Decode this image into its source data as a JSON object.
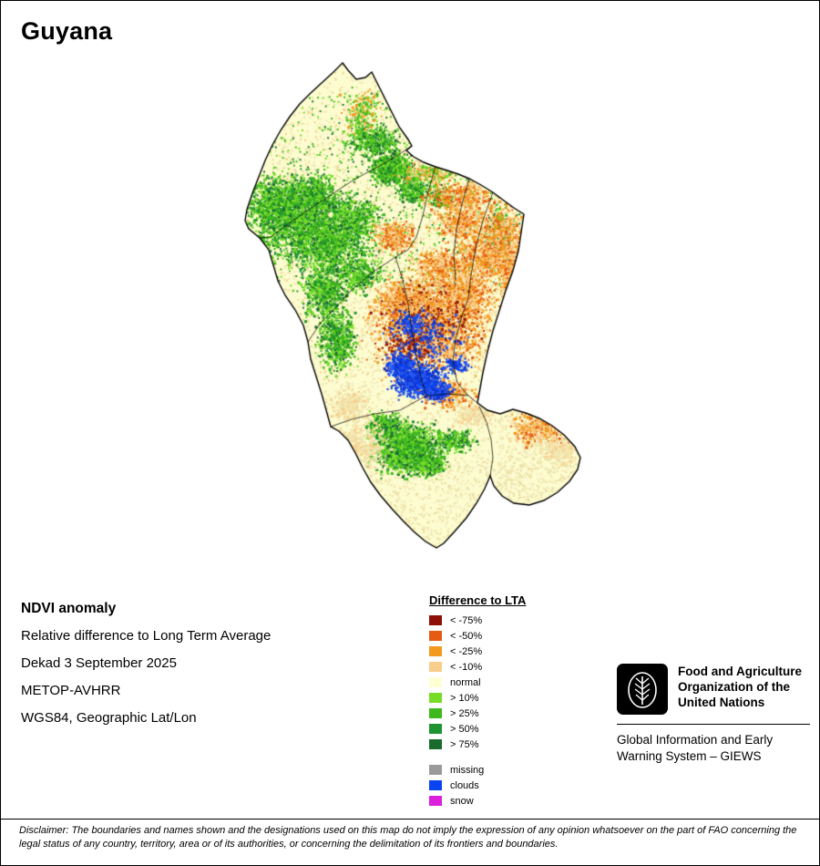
{
  "page": {
    "title": "Guyana"
  },
  "info": {
    "heading": "NDVI anomaly",
    "lines": [
      "Relative difference to Long Term Average",
      "Dekad 3 September 2025",
      "METOP-AVHRR",
      "WGS84, Geographic Lat/Lon"
    ]
  },
  "legend": {
    "title": "Difference to LTA",
    "items": [
      {
        "label": "< -75%",
        "color": "#8C1005"
      },
      {
        "label": "< -50%",
        "color": "#E55B12"
      },
      {
        "label": "< -25%",
        "color": "#F29A1F"
      },
      {
        "label": "< -10%",
        "color": "#F8CE8C"
      },
      {
        "label": "normal",
        "color": "#FFFFD4"
      },
      {
        "label": "> 10%",
        "color": "#76DC28"
      },
      {
        "label": "> 25%",
        "color": "#3FB81E"
      },
      {
        "label": "> 50%",
        "color": "#1E9430"
      },
      {
        "label": "> 75%",
        "color": "#1B6B2F"
      }
    ],
    "extra_items": [
      {
        "label": "missing",
        "color": "#9A9A9A"
      },
      {
        "label": "clouds",
        "color": "#0844F0"
      },
      {
        "label": "snow",
        "color": "#DC1FDC"
      }
    ]
  },
  "map": {
    "base_color": "#FDFCD0",
    "border_color": "#000000"
  },
  "footer": {
    "org_name": "Food and Agriculture Organization of the United Nations",
    "giews_name": "Global Information and Early Warning System – GIEWS"
  },
  "disclaimer": "Disclaimer: The boundaries and names shown and the designations used on this map do not imply the expression of any opinion whatsoever on the part of FAO concerning the legal status of any country, territory, area or of its authorities, or concerning the delimitation of its frontiers and boundaries."
}
